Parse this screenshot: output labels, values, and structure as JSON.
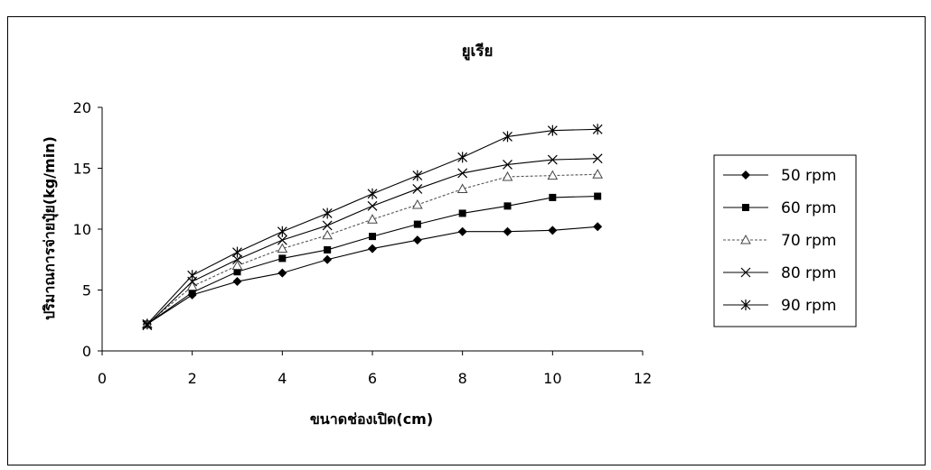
{
  "chart_data": {
    "type": "line",
    "title": "ยูเรีย",
    "xlabel": "ขนาดช่องเปิด(cm)",
    "ylabel": "ปริมาณการจ่ายปุ๋ย(kg/min)",
    "xlim": [
      0,
      12
    ],
    "ylim": [
      0,
      20
    ],
    "xticks": [
      0,
      2,
      4,
      6,
      8,
      10,
      12
    ],
    "yticks": [
      0,
      5,
      10,
      15,
      20
    ],
    "grid": false,
    "legend_position": "right",
    "x": [
      1,
      2,
      3,
      4,
      5,
      6,
      7,
      8,
      9,
      10,
      11
    ],
    "series": [
      {
        "name": "50 rpm",
        "marker": "diamond",
        "dash": "",
        "values": [
          2.2,
          4.6,
          5.7,
          6.4,
          7.5,
          8.4,
          9.1,
          9.8,
          9.8,
          9.9,
          10.2
        ]
      },
      {
        "name": "60 rpm",
        "marker": "square",
        "dash": "",
        "values": [
          2.2,
          4.8,
          6.5,
          7.6,
          8.3,
          9.4,
          10.4,
          11.3,
          11.9,
          12.6,
          12.7
        ]
      },
      {
        "name": "70 rpm",
        "marker": "triangle",
        "dash": "3,2",
        "values": [
          2.2,
          5.3,
          7.0,
          8.4,
          9.5,
          10.8,
          12.0,
          13.3,
          14.3,
          14.4,
          14.5
        ]
      },
      {
        "name": "80 rpm",
        "marker": "x",
        "dash": "",
        "values": [
          2.1,
          5.7,
          7.5,
          9.1,
          10.3,
          11.9,
          13.3,
          14.6,
          15.3,
          15.7,
          15.8
        ]
      },
      {
        "name": "90 rpm",
        "marker": "asterisk",
        "dash": "",
        "values": [
          2.2,
          6.2,
          8.1,
          9.8,
          11.3,
          12.9,
          14.4,
          15.9,
          17.6,
          18.1,
          18.2
        ]
      }
    ]
  }
}
